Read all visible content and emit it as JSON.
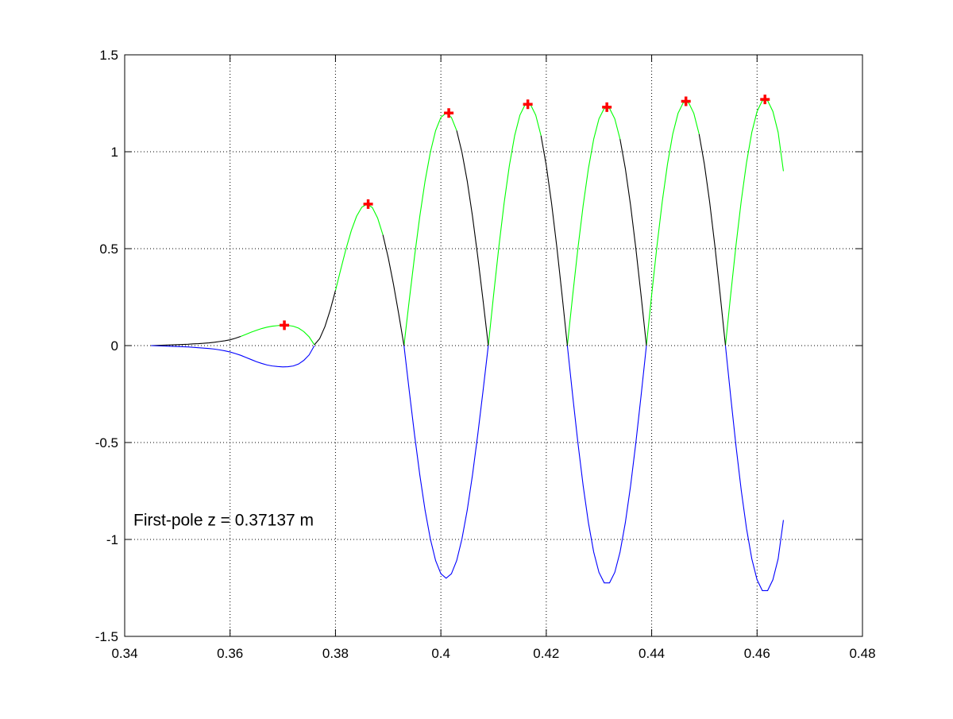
{
  "chart_data": {
    "type": "line",
    "annotation": "First-pole z = 0.37137 m",
    "xlim": [
      0.34,
      0.48
    ],
    "xticks": [
      0.34,
      0.36,
      0.38,
      0.4,
      0.42,
      0.44,
      0.46,
      0.48
    ],
    "ylim": [
      -1.5,
      1.5
    ],
    "yticks": [
      -1.5,
      -1,
      -0.5,
      0,
      0.5,
      1,
      1.5
    ],
    "grid": true,
    "x": [
      0.345,
      0.346,
      0.347,
      0.348,
      0.349,
      0.35,
      0.351,
      0.352,
      0.353,
      0.354,
      0.355,
      0.356,
      0.357,
      0.358,
      0.359,
      0.36,
      0.361,
      0.362,
      0.363,
      0.364,
      0.365,
      0.366,
      0.367,
      0.368,
      0.369,
      0.37,
      0.371,
      0.372,
      0.373,
      0.374,
      0.375,
      0.376,
      0.377,
      0.378,
      0.379,
      0.38,
      0.381,
      0.382,
      0.383,
      0.384,
      0.385,
      0.386,
      0.387,
      0.388,
      0.389,
      0.39,
      0.391,
      0.392,
      0.393,
      0.394,
      0.395,
      0.396,
      0.397,
      0.398,
      0.399,
      0.4,
      0.401,
      0.402,
      0.403,
      0.404,
      0.405,
      0.406,
      0.407,
      0.408,
      0.409,
      0.41,
      0.411,
      0.412,
      0.413,
      0.414,
      0.415,
      0.416,
      0.417,
      0.418,
      0.419,
      0.42,
      0.421,
      0.422,
      0.423,
      0.424,
      0.425,
      0.426,
      0.427,
      0.428,
      0.429,
      0.43,
      0.431,
      0.432,
      0.433,
      0.434,
      0.435,
      0.436,
      0.437,
      0.438,
      0.439,
      0.44,
      0.441,
      0.442,
      0.443,
      0.444,
      0.445,
      0.446,
      0.447,
      0.448,
      0.449,
      0.45,
      0.451,
      0.452,
      0.453,
      0.454,
      0.455,
      0.456,
      0.457,
      0.458,
      0.459,
      0.46,
      0.461,
      0.462,
      0.463,
      0.464,
      0.465
    ],
    "series": [
      {
        "color": "#00ff00",
        "values": [
          null,
          null,
          null,
          null,
          null,
          null,
          null,
          null,
          null,
          null,
          null,
          null,
          null,
          null,
          null,
          null,
          null,
          0.047,
          0.058,
          0.069,
          0.079,
          0.088,
          0.095,
          0.1,
          0.103,
          0.105,
          0.104,
          0.1,
          0.09,
          0.072,
          0.045,
          0.004,
          null,
          null,
          null,
          0.284,
          0.393,
          0.499,
          0.593,
          0.667,
          0.714,
          0.73,
          0.712,
          0.658,
          0.571,
          null,
          null,
          null,
          0,
          0.234,
          0.459,
          0.667,
          0.849,
          0.997,
          1.109,
          1.177,
          1.2,
          1.177,
          1.109,
          null,
          null,
          null,
          null,
          null,
          0,
          0.26,
          0.509,
          0.735,
          0.929,
          1.083,
          1.189,
          1.244,
          1.244,
          1.189,
          1.083,
          null,
          null,
          null,
          null,
          0,
          0.256,
          0.501,
          0.723,
          0.914,
          1.065,
          1.17,
          1.224,
          1.224,
          1.17,
          1.065,
          null,
          null,
          null,
          null,
          0,
          0.262,
          0.513,
          0.741,
          0.936,
          1.091,
          1.198,
          1.254,
          1.254,
          1.198,
          1.091,
          null,
          null,
          null,
          null,
          0,
          0.264,
          0.517,
          0.747,
          0.944,
          1.1,
          1.208,
          1.264,
          1.264,
          1.208,
          1.1,
          0.9
        ]
      },
      {
        "color": "#000000",
        "values": [
          0,
          0.001,
          0.002,
          0.003,
          0.004,
          0.005,
          0.006,
          0.007,
          0.009,
          0.01,
          0.012,
          0.014,
          0.017,
          0.021,
          0.025,
          0.03,
          0.038,
          0.047,
          null,
          null,
          null,
          null,
          null,
          null,
          null,
          null,
          null,
          null,
          null,
          null,
          null,
          0.004,
          0.036,
          0.098,
          0.183,
          0.284,
          null,
          null,
          null,
          null,
          null,
          null,
          null,
          null,
          0.571,
          0.455,
          0.317,
          0.163,
          0,
          null,
          null,
          null,
          null,
          null,
          null,
          null,
          null,
          null,
          1.109,
          0.997,
          0.849,
          0.667,
          0.459,
          0.234,
          0,
          null,
          null,
          null,
          null,
          null,
          null,
          null,
          null,
          null,
          1.083,
          0.929,
          0.735,
          0.509,
          0.26,
          0,
          null,
          null,
          null,
          null,
          null,
          null,
          null,
          null,
          null,
          1.065,
          0.914,
          0.723,
          0.501,
          0.256,
          0,
          null,
          null,
          null,
          null,
          null,
          null,
          null,
          null,
          null,
          1.091,
          0.936,
          0.741,
          0.513,
          0.262,
          0,
          null,
          null,
          null,
          null,
          null,
          null,
          null,
          null,
          null,
          null,
          null
        ]
      },
      {
        "color": "#0000ff",
        "values": [
          0,
          -0.001,
          -0.002,
          -0.003,
          -0.004,
          -0.005,
          -0.006,
          -0.007,
          -0.009,
          -0.011,
          -0.013,
          -0.015,
          -0.018,
          -0.022,
          -0.027,
          -0.033,
          -0.041,
          -0.05,
          -0.061,
          -0.072,
          -0.083,
          -0.092,
          -0.1,
          -0.105,
          -0.108,
          -0.11,
          -0.109,
          -0.105,
          -0.095,
          -0.076,
          -0.048,
          0,
          null,
          null,
          null,
          null,
          null,
          null,
          null,
          null,
          null,
          null,
          null,
          null,
          null,
          null,
          null,
          null,
          0,
          -0.234,
          -0.459,
          -0.667,
          -0.849,
          -0.997,
          -1.109,
          -1.177,
          -1.2,
          -1.177,
          -1.109,
          -0.997,
          -0.849,
          -0.667,
          -0.459,
          -0.234,
          0,
          null,
          null,
          null,
          null,
          null,
          null,
          null,
          null,
          null,
          null,
          null,
          null,
          null,
          null,
          0,
          -0.256,
          -0.501,
          -0.723,
          -0.914,
          -1.065,
          -1.17,
          -1.224,
          -1.224,
          -1.17,
          -1.065,
          -0.914,
          -0.723,
          -0.501,
          -0.256,
          0,
          null,
          null,
          null,
          null,
          null,
          null,
          null,
          null,
          null,
          null,
          null,
          null,
          null,
          null,
          0,
          -0.264,
          -0.517,
          -0.747,
          -0.944,
          -1.1,
          -1.208,
          -1.264,
          -1.264,
          -1.208,
          -1.1,
          -0.9
        ]
      }
    ],
    "markers": {
      "color": "#ff0000",
      "x": [
        0.3703,
        0.3862,
        0.4015,
        0.4165,
        0.4315,
        0.4465,
        0.4615
      ],
      "values": [
        0.105,
        0.73,
        1.2,
        1.245,
        1.23,
        1.26,
        1.27
      ]
    }
  }
}
